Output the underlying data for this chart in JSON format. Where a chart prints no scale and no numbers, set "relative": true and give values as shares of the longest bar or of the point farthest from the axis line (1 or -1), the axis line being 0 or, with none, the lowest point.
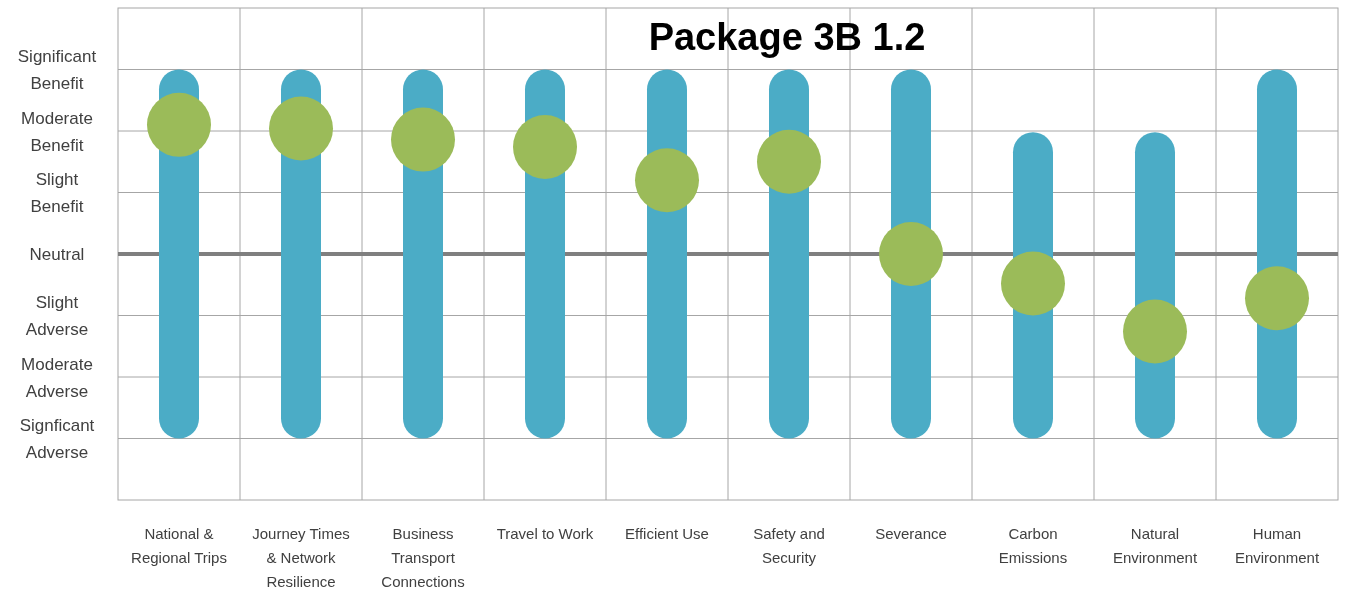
{
  "chart_data": {
    "type": "bar",
    "title": "Package 3B 1.2",
    "relative": true,
    "categories": [
      "National & Regional Trips",
      "Journey Times & Network Resilience",
      "Business Transport Connections",
      "Travel to Work",
      "Efficient Use",
      "Safety and Security",
      "Severance",
      "Carbon Emissions",
      "Natural Environment",
      "Human Environment"
    ],
    "series": [
      {
        "color": "#4bacc6",
        "values": [
          1,
          1,
          1,
          1,
          1,
          1,
          1,
          0.83,
          0.83,
          1
        ]
      },
      {
        "type": "scatter",
        "color": "#9bbb59",
        "x": [
          "National & Regional Trips",
          "Journey Times & Network Resilience",
          "Business Transport Connections",
          "Travel to Work",
          "Efficient Use",
          "Safety and Security",
          "Severance",
          "Carbon Emissions",
          "Natural Environment",
          "Human Environment"
        ],
        "values": [
          0.85,
          0.84,
          0.81,
          0.79,
          0.7,
          0.75,
          0.5,
          0.42,
          0.29,
          0.38
        ]
      }
    ],
    "annotations": [
      "Significant Benefit",
      "Moderate Benefit",
      "Slight Benefit",
      "Neutral",
      "Slight Adverse",
      "Moderate Adverse",
      "Signficant Adverse"
    ],
    "ref_lines": [
      {
        "axis": "y",
        "value": 0.5,
        "color": "#7f7f7f"
      }
    ],
    "grid": true,
    "marker": "circle"
  }
}
